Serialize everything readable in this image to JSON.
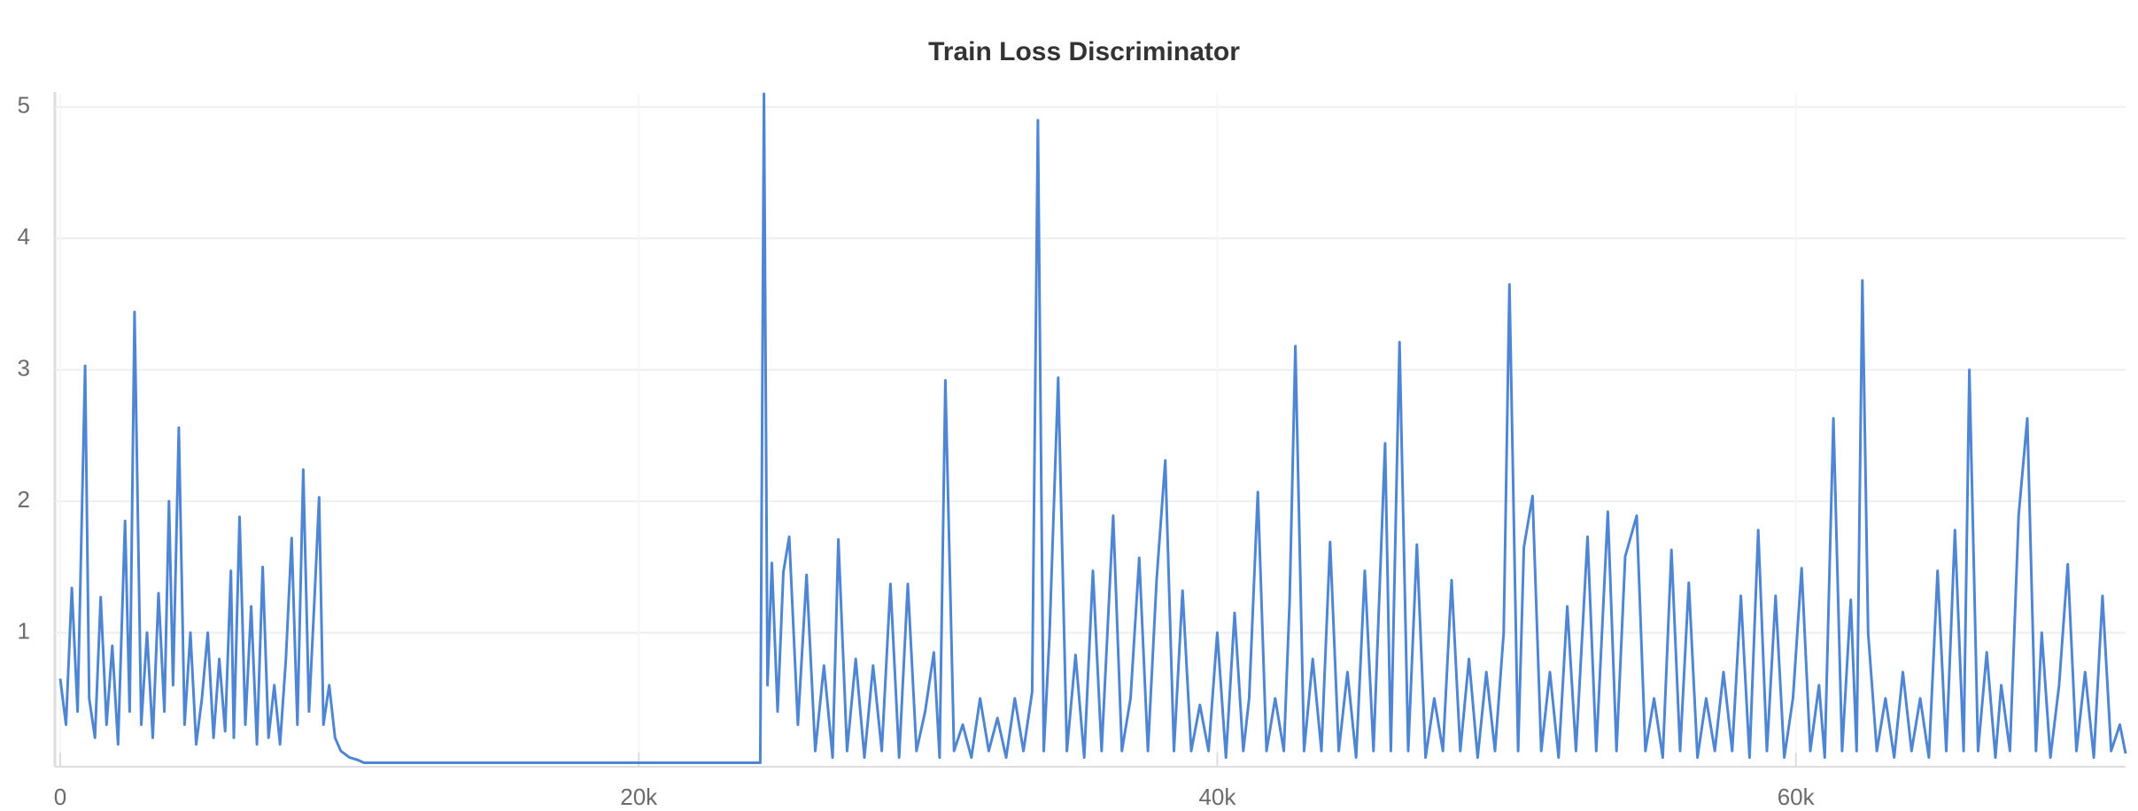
{
  "chart_data": {
    "type": "line",
    "title": "Train Loss Discriminator",
    "x": [
      0,
      200,
      400,
      600,
      860,
      1000,
      1200,
      1400,
      1600,
      1800,
      2000,
      2240,
      2400,
      2570,
      2800,
      3000,
      3200,
      3400,
      3600,
      3760,
      3900,
      4100,
      4300,
      4500,
      4700,
      4900,
      5100,
      5300,
      5500,
      5700,
      5900,
      6000,
      6200,
      6400,
      6600,
      6800,
      7000,
      7200,
      7400,
      7600,
      7800,
      8000,
      8200,
      8400,
      8600,
      8800,
      8950,
      9100,
      9300,
      9500,
      9700,
      10000,
      10300,
      10500,
      14000,
      18000,
      22000,
      24200,
      24330,
      24450,
      24600,
      24800,
      25000,
      25200,
      25500,
      25800,
      26100,
      26400,
      26700,
      26900,
      27200,
      27500,
      27800,
      28100,
      28400,
      28700,
      29000,
      29300,
      29600,
      29900,
      30200,
      30400,
      30600,
      30900,
      31200,
      31500,
      31800,
      32100,
      32400,
      32700,
      33000,
      33300,
      33600,
      33800,
      34000,
      34200,
      34500,
      34800,
      35100,
      35400,
      35700,
      36000,
      36400,
      36700,
      37000,
      37300,
      37600,
      37900,
      38200,
      38500,
      38800,
      39100,
      39400,
      39700,
      40000,
      40300,
      40600,
      40900,
      41100,
      41400,
      41700,
      42000,
      42300,
      42500,
      42700,
      43000,
      43300,
      43600,
      43900,
      44200,
      44500,
      44800,
      45100,
      45400,
      45800,
      46000,
      46300,
      46600,
      46900,
      47200,
      47500,
      47800,
      48100,
      48400,
      48700,
      49000,
      49300,
      49600,
      49900,
      50100,
      50400,
      50600,
      50900,
      51200,
      51500,
      51800,
      52100,
      52400,
      52800,
      53100,
      53500,
      53800,
      54100,
      54500,
      54800,
      55100,
      55400,
      55700,
      56000,
      56300,
      56600,
      56900,
      57200,
      57500,
      57800,
      58100,
      58400,
      58700,
      59000,
      59300,
      59600,
      59900,
      60200,
      60500,
      60800,
      61000,
      61300,
      61600,
      61900,
      62100,
      62300,
      62500,
      62800,
      63100,
      63400,
      63700,
      64000,
      64300,
      64600,
      64900,
      65200,
      65500,
      65800,
      66000,
      66300,
      66600,
      66900,
      67100,
      67400,
      67700,
      68000,
      68300,
      68500,
      68800,
      69100,
      69400,
      69700,
      70000,
      70300,
      70600,
      70900,
      71200,
      71400
    ],
    "series": [
      {
        "color": "#4f86d3",
        "values": [
          0.65,
          0.3,
          1.34,
          0.4,
          3.03,
          0.5,
          0.2,
          1.27,
          0.3,
          0.9,
          0.15,
          1.85,
          0.4,
          3.44,
          0.3,
          1.0,
          0.2,
          1.3,
          0.4,
          2.0,
          0.6,
          2.56,
          0.3,
          1.0,
          0.15,
          0.5,
          1.0,
          0.2,
          0.8,
          0.25,
          1.47,
          0.2,
          1.88,
          0.3,
          1.2,
          0.15,
          1.5,
          0.2,
          0.6,
          0.15,
          0.8,
          1.72,
          0.3,
          2.24,
          0.4,
          1.3,
          2.03,
          0.3,
          0.6,
          0.2,
          0.1,
          0.05,
          0.03,
          0.01,
          0.01,
          0.01,
          0.01,
          0.01,
          5.1,
          0.6,
          1.53,
          0.4,
          1.46,
          1.73,
          0.3,
          1.44,
          0.1,
          0.75,
          0.05,
          1.71,
          0.1,
          0.8,
          0.05,
          0.75,
          0.1,
          1.37,
          0.05,
          1.37,
          0.1,
          0.4,
          0.85,
          0.05,
          2.92,
          0.1,
          0.3,
          0.05,
          0.5,
          0.1,
          0.35,
          0.05,
          0.5,
          0.1,
          0.55,
          4.9,
          0.1,
          0.98,
          2.94,
          0.1,
          0.83,
          0.05,
          1.47,
          0.1,
          1.89,
          0.1,
          0.5,
          1.57,
          0.1,
          1.4,
          2.31,
          0.1,
          1.32,
          0.1,
          0.45,
          0.1,
          1.0,
          0.05,
          1.15,
          0.1,
          0.5,
          2.07,
          0.1,
          0.5,
          0.1,
          1.24,
          3.18,
          0.1,
          0.8,
          0.1,
          1.69,
          0.1,
          0.7,
          0.05,
          1.47,
          0.1,
          2.44,
          0.1,
          3.21,
          0.1,
          1.67,
          0.05,
          0.5,
          0.1,
          1.4,
          0.1,
          0.8,
          0.05,
          0.7,
          0.1,
          1.0,
          3.65,
          0.1,
          1.65,
          2.04,
          0.1,
          0.7,
          0.05,
          1.2,
          0.1,
          1.73,
          0.1,
          1.92,
          0.1,
          1.58,
          1.89,
          0.1,
          0.5,
          0.05,
          1.63,
          0.1,
          1.38,
          0.05,
          0.5,
          0.1,
          0.7,
          0.1,
          1.28,
          0.05,
          1.78,
          0.1,
          1.28,
          0.05,
          0.5,
          1.49,
          0.1,
          0.6,
          0.05,
          2.63,
          0.1,
          1.25,
          0.1,
          3.68,
          1.0,
          0.1,
          0.5,
          0.05,
          0.7,
          0.1,
          0.5,
          0.05,
          1.47,
          0.1,
          1.78,
          0.1,
          3.0,
          0.1,
          0.85,
          0.05,
          0.6,
          0.1,
          1.89,
          2.63,
          0.1,
          1.0,
          0.05,
          0.6,
          1.52,
          0.1,
          0.7,
          0.05,
          1.28,
          0.1,
          0.3,
          0.08
        ]
      }
    ],
    "xlim": [
      0,
      71400
    ],
    "xticks": [
      0,
      {
        "value": 20000,
        "label": "20k"
      },
      {
        "value": 40000,
        "label": "40k"
      },
      {
        "value": 60000,
        "label": "60k"
      }
    ],
    "ylim": [
      0,
      5.1
    ],
    "yticks": [
      1,
      2,
      3,
      4,
      5
    ],
    "grid": true
  }
}
